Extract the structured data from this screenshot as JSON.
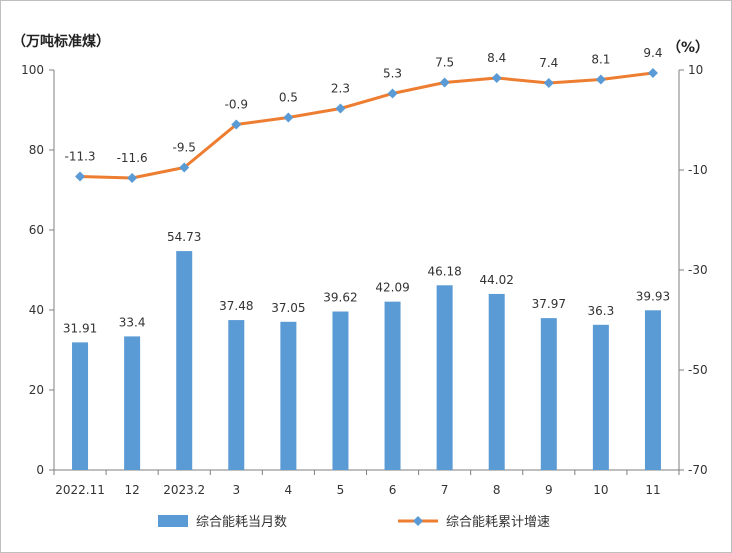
{
  "chart_data": {
    "type": "bar",
    "title": "",
    "categories": [
      "2022.11",
      "12",
      "2023.2",
      "3",
      "4",
      "5",
      "6",
      "7",
      "8",
      "9",
      "10",
      "11"
    ],
    "y_left": {
      "label": "（万吨标准煤）",
      "range": [
        0,
        100
      ],
      "ticks": [
        "0",
        "20",
        "40",
        "60",
        "80",
        "100"
      ],
      "tick_values": [
        0,
        20,
        40,
        60,
        80,
        100
      ]
    },
    "y_right": {
      "label": "（%）",
      "range": [
        -70,
        10
      ],
      "ticks": [
        "-70",
        "-50",
        "-30",
        "-10",
        "10"
      ],
      "tick_values": [
        -70,
        -50,
        -30,
        -10,
        10
      ]
    },
    "series": [
      {
        "name": "综合能耗当月数",
        "type": "bar",
        "axis": "left",
        "color": "#5b9bd5",
        "values": [
          31.91,
          33.4,
          54.73,
          37.48,
          37.05,
          39.62,
          42.09,
          46.18,
          44.02,
          37.97,
          36.3,
          39.93
        ],
        "labels": [
          "31.91",
          "33.4",
          "54.73",
          "37.48",
          "37.05",
          "39.62",
          "42.09",
          "46.18",
          "44.02",
          "37.97",
          "36.3",
          "39.93"
        ]
      },
      {
        "name": "综合能耗累计增速",
        "type": "line",
        "axis": "right",
        "color": "#ed7d31",
        "marker_color": "#5b9bd5",
        "values": [
          -11.3,
          -11.6,
          -9.5,
          -0.9,
          0.5,
          2.3,
          5.3,
          7.5,
          8.4,
          7.4,
          8.1,
          9.4
        ],
        "labels": [
          "-11.3",
          "-11.6",
          "-9.5",
          "-0.9",
          "0.5",
          "2.3",
          "5.3",
          "7.5",
          "8.4",
          "7.4",
          "8.1",
          "9.4"
        ]
      }
    ],
    "grid": false,
    "legend": "bottom"
  }
}
